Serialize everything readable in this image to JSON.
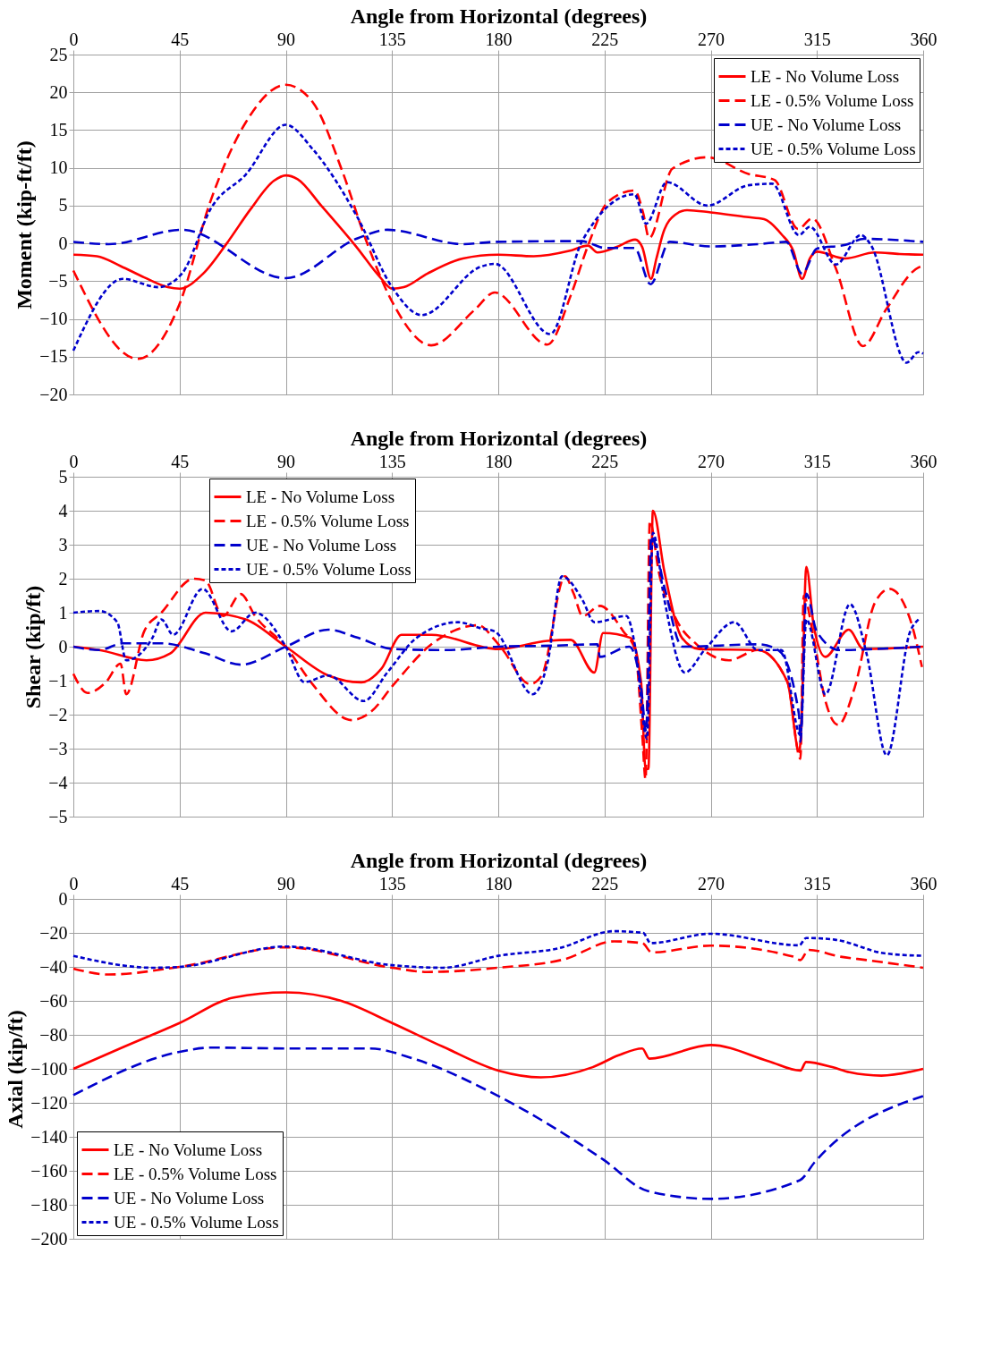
{
  "chart_data": [
    {
      "type": "line",
      "xlabel": "Angle from Horizontal (degrees)",
      "ylabel": "Moment (kip-ft/ft)",
      "xlim": [
        0,
        360
      ],
      "xticks": [
        0,
        45,
        90,
        135,
        180,
        225,
        270,
        315,
        360
      ],
      "ylim": [
        -20,
        25
      ],
      "yticks": [
        -20,
        -15,
        -10,
        -5,
        0,
        5,
        10,
        15,
        20,
        25
      ],
      "grid": true,
      "legend": "top right",
      "series": [
        {
          "name": "LE - No Volume Loss",
          "color": "#ff0000",
          "line_style": "solid",
          "x": [
            0,
            10,
            20,
            30,
            40,
            45,
            55,
            65,
            75,
            85,
            90,
            95,
            105,
            120,
            130,
            135,
            140,
            150,
            165,
            180,
            195,
            210,
            218,
            222,
            230,
            238,
            241,
            244.7,
            247,
            250,
            255,
            260,
            270,
            285,
            292.6,
            300,
            305,
            308.7,
            312,
            315,
            327,
            339.5,
            350,
            360
          ],
          "values": [
            -1.5,
            -1.7,
            -3,
            -4.5,
            -5.8,
            -6,
            -4,
            0,
            4.5,
            8.3,
            9,
            8.5,
            5,
            -0.5,
            -4.5,
            -6,
            -5.8,
            -4,
            -2,
            -1.5,
            -1.7,
            -1,
            -0.3,
            -1.2,
            -0.5,
            0.5,
            -0.5,
            -4.7,
            -2,
            1.5,
            3.8,
            4.4,
            4.1,
            3.5,
            3.2,
            1.2,
            -1,
            -4.7,
            -2,
            -1.1,
            -2,
            -1.2,
            -1.4,
            -1.5
          ]
        },
        {
          "name": "LE - 0.5% Volume Loss",
          "color": "#ff0000",
          "line_style": "dashed",
          "x": [
            0,
            27.3,
            45,
            58,
            73,
            90,
            101.6,
            114,
            124,
            135,
            151.6,
            170,
            178.5,
            200.8,
            210.7,
            218,
            226.5,
            237.7,
            241.4,
            243.9,
            253.8,
            268.6,
            286,
            297,
            307,
            313,
            323,
            334.5,
            344.4,
            358,
            360
          ],
          "values": [
            -3.6,
            -15.3,
            -8,
            5.5,
            16,
            21,
            18.6,
            9.5,
            0.4,
            -7.7,
            -13.5,
            -8.8,
            -6.5,
            -13.4,
            -6.9,
            -0.3,
            5.5,
            7,
            4,
            0.7,
            9.9,
            11.4,
            9.2,
            8.4,
            1.9,
            3.3,
            -3.3,
            -13.6,
            -8.7,
            -3.2,
            -3
          ]
        },
        {
          "name": "UE - No Volume Loss",
          "color": "#0000cc",
          "line_style": "dashed",
          "x": [
            0,
            15,
            46,
            90,
            120.6,
            133,
            165,
            178.5,
            215.5,
            219,
            225,
            237.7,
            244.5,
            252.6,
            270,
            290,
            302,
            308.7,
            315,
            327,
            335,
            360
          ],
          "values": [
            0.2,
            -0.1,
            1.8,
            -4.6,
            0.7,
            1.8,
            -0.1,
            0.2,
            0.3,
            0,
            -0.6,
            -0.6,
            -5.4,
            0.2,
            -0.4,
            -0.1,
            0.2,
            -4,
            -0.7,
            -0.2,
            0.6,
            0.2
          ]
        },
        {
          "name": "UE - 0.5% Volume Loss",
          "color": "#0000cc",
          "line_style": "dotted",
          "x": [
            0,
            21,
            36,
            46,
            58.4,
            73,
            90,
            101.6,
            120.6,
            135,
            147.6,
            172.5,
            178.5,
            202,
            215.5,
            237.7,
            242.6,
            251.4,
            268.6,
            286,
            296,
            307.3,
            312,
            323,
            333.6,
            338,
            353,
            358,
            360
          ],
          "values": [
            -14.2,
            -4.7,
            -5.8,
            -4,
            4.7,
            9.1,
            15.7,
            12.4,
            3.3,
            -5.8,
            -9.5,
            -3.1,
            -2.7,
            -12,
            0.3,
            6.5,
            2.6,
            8.1,
            5,
            7.7,
            7.9,
            1.1,
            2.2,
            -2.8,
            1.1,
            -0.3,
            -15.8,
            -14.4,
            -14.6
          ]
        }
      ]
    },
    {
      "type": "line",
      "xlabel": "Angle from Horizontal (degrees)",
      "ylabel": "Shear (kip/ft)",
      "xlim": [
        0,
        360
      ],
      "xticks": [
        0,
        45,
        90,
        135,
        180,
        225,
        270,
        315,
        360
      ],
      "ylim": [
        -5,
        5
      ],
      "yticks": [
        -5,
        -4,
        -3,
        -2,
        -1,
        0,
        1,
        2,
        3,
        4,
        5
      ],
      "grid": true,
      "legend": "top",
      "series": [
        {
          "name": "LE - No Volume Loss",
          "color": "#ff0000",
          "line_style": "solid",
          "x": [
            0,
            11,
            31,
            41,
            56,
            73,
            90,
            108,
            122,
            130.5,
            139,
            151.7,
            180,
            200.8,
            210.7,
            220.7,
            224.4,
            236,
            240.5,
            242.4,
            243.6,
            245.5,
            250.4,
            257.8,
            265,
            290,
            302.5,
            307.5,
            308.4,
            310.5,
            313.6,
            318.5,
            328.5,
            334.7,
            360
          ],
          "values": [
            0,
            -0.1,
            -0.4,
            -0.2,
            1,
            0.8,
            0,
            -0.85,
            -1.05,
            -0.65,
            0.35,
            0.35,
            -0.07,
            0.17,
            0.2,
            -0.76,
            0.4,
            0.26,
            -1.04,
            -3.6,
            -3.6,
            4,
            2.2,
            0.26,
            -0.07,
            -0.1,
            -1.04,
            -3.1,
            -2.3,
            2.35,
            0.63,
            -0.3,
            0.5,
            -0.07,
            0
          ]
        },
        {
          "name": "LE - 0.5% Volume Loss",
          "color": "#ff0000",
          "line_style": "dashed",
          "x": [
            0,
            6,
            13.7,
            20,
            22.4,
            30,
            37.3,
            51,
            55.9,
            63.4,
            70.9,
            77,
            90,
            101.6,
            117.7,
            126,
            135.5,
            151.7,
            171.6,
            178.5,
            182,
            193.4,
            198.4,
            208.3,
            212,
            215.7,
            223,
            233,
            238,
            241,
            242.4,
            244.2,
            248,
            255.4,
            264,
            277.7,
            290,
            302.5,
            308,
            309.4,
            313.6,
            318.6,
            324,
            331,
            339.6,
            345.8,
            354.5,
            359.5
          ],
          "values": [
            -0.8,
            -1.36,
            -1.05,
            -0.5,
            -1.4,
            0.45,
            1,
            2,
            1.95,
            0.9,
            1.55,
            0.9,
            0,
            -1.13,
            -2.16,
            -1.92,
            -1.13,
            0.07,
            0.63,
            0.2,
            -0.1,
            -1.1,
            -0.85,
            2.07,
            1.55,
            0.9,
            1.2,
            0.45,
            -0.1,
            -2.6,
            -3.9,
            3.7,
            2.2,
            0.8,
            0.07,
            -0.4,
            -0.1,
            -1.04,
            -3.3,
            1.5,
            0.26,
            -1.6,
            -2.3,
            -1.2,
            1.3,
            1.7,
            0.8,
            -0.6
          ]
        },
        {
          "name": "UE - No Volume Loss",
          "color": "#0000cc",
          "line_style": "dashed",
          "x": [
            0,
            11,
            21,
            37.3,
            56,
            71,
            90,
            108,
            120.6,
            135.5,
            158,
            180,
            203,
            222,
            223,
            235.5,
            240.5,
            242.7,
            244.8,
            250.4,
            258,
            290,
            298.6,
            307.4,
            308,
            310.5,
            314.9,
            324.6,
            339.5,
            360
          ],
          "values": [
            0,
            -0.1,
            0.1,
            0.1,
            -0.2,
            -0.53,
            0,
            0.5,
            0.26,
            -0.07,
            -0.1,
            0,
            0.03,
            0.07,
            -0.3,
            0,
            -1.2,
            -2.5,
            3.25,
            1.75,
            0,
            0.07,
            -0.1,
            -2,
            -2.8,
            1.56,
            0.45,
            -0.1,
            -0.07,
            0
          ]
        },
        {
          "name": "UE - 0.5% Volume Loss",
          "color": "#0000cc",
          "line_style": "dotted",
          "x": [
            0,
            11,
            18.6,
            22.4,
            33.5,
            37.3,
            42.3,
            54.7,
            67,
            77,
            90,
            97.8,
            108,
            123,
            133,
            145.4,
            163,
            172.7,
            178.5,
            194.6,
            200.8,
            207,
            215.7,
            220.7,
            234.3,
            238,
            243,
            245.5,
            250.4,
            259,
            267.7,
            280,
            290,
            300,
            308,
            310.5,
            318.6,
            329,
            336,
            344.6,
            354.5,
            358
          ],
          "values": [
            1,
            1.05,
            0.72,
            -0.4,
            0.26,
            0.8,
            0.35,
            1.7,
            0.45,
            1,
            0,
            -1.04,
            -0.85,
            -1.6,
            -0.76,
            0.26,
            0.72,
            0.54,
            0.45,
            -1.4,
            -0.5,
            2.07,
            1.37,
            0.72,
            0.9,
            0,
            -2.7,
            3.35,
            1.37,
            -0.76,
            -0.07,
            0.72,
            -0.1,
            -0.1,
            -2.6,
            0.8,
            -1.4,
            1.25,
            -0.2,
            -3.2,
            0.45,
            0.8
          ]
        }
      ]
    },
    {
      "type": "line",
      "xlabel": "Angle from Horizontal (degrees)",
      "ylabel": "Axial (kip/ft)",
      "xlim": [
        0,
        360
      ],
      "xticks": [
        0,
        45,
        90,
        135,
        180,
        225,
        270,
        315,
        360
      ],
      "ylim": [
        -200,
        0
      ],
      "yticks": [
        -200,
        -180,
        -160,
        -140,
        -120,
        -100,
        -80,
        -60,
        -40,
        -20,
        0
      ],
      "grid": true,
      "legend": "bottom left",
      "series": [
        {
          "name": "LE - No Volume Loss",
          "color": "#ff0000",
          "line_style": "solid",
          "x": [
            0,
            21.5,
            45,
            68,
            90,
            113.5,
            135,
            156.6,
            180,
            198,
            220,
            231,
            241,
            244,
            270,
            294.5,
            308,
            310.4,
            321.5,
            328.8,
            342.3,
            360
          ],
          "values": [
            -100,
            -87,
            -73,
            -58,
            -55,
            -60,
            -73,
            -87,
            -101,
            -105,
            -99,
            -92,
            -88,
            -94,
            -86,
            -95.5,
            -101,
            -96,
            -99,
            -102,
            -104,
            -100
          ]
        },
        {
          "name": "LE - 0.5% Volume Loss",
          "color": "#ff0000",
          "line_style": "dashed",
          "x": [
            0,
            15,
            45,
            90,
            135,
            150,
            180,
            208,
            229,
            241,
            245,
            270,
            305,
            308,
            311.4,
            325,
            336,
            360
          ],
          "values": [
            -41,
            -44.5,
            -40,
            -28.5,
            -40.5,
            -43,
            -40.5,
            -35.5,
            -25,
            -26,
            -31.5,
            -27.5,
            -34,
            -36,
            -30,
            -34,
            -36,
            -40.5
          ]
        },
        {
          "name": "UE - No Volume Loss",
          "color": "#0000cc",
          "line_style": "dashed",
          "x": [
            0,
            45,
            58.4,
            90,
            125.8,
            144,
            180,
            224.6,
            243.5,
            270,
            307.8,
            314,
            360
          ],
          "values": [
            -115.5,
            -90,
            -87.5,
            -88,
            -88,
            -94,
            -116,
            -153.5,
            -172,
            -176.5,
            -165.5,
            -155,
            -116
          ]
        },
        {
          "name": "UE - 0.5% Volume Loss",
          "color": "#0000cc",
          "line_style": "dotted",
          "x": [
            0,
            33.8,
            45,
            90,
            135,
            156.6,
            180,
            205.7,
            229,
            241.4,
            244.5,
            270,
            307.5,
            310.4,
            322.6,
            343.5,
            360
          ],
          "values": [
            -33.5,
            -40.5,
            -40,
            -28,
            -39,
            -40.5,
            -33.5,
            -29,
            -19,
            -20,
            -26,
            -20.5,
            -27.3,
            -23,
            -24,
            -32,
            -33.5
          ]
        }
      ]
    }
  ]
}
